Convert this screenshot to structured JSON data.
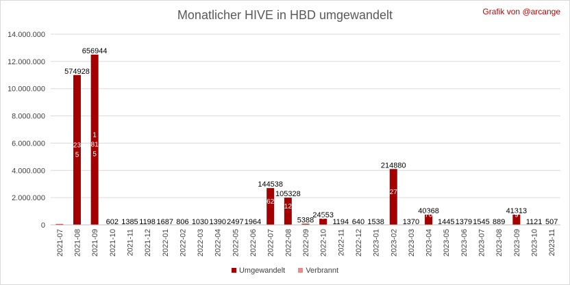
{
  "title": "Monatlicher HIVE in HBD umgewandelt",
  "credit": "Grafik von @arcange",
  "colors": {
    "converted": "#a50000",
    "converted_dark": "#7a0000",
    "burned": "#e8898a"
  },
  "chart_data": {
    "type": "bar",
    "stacked": true,
    "title": "Monatlicher HIVE in HBD umgewandelt",
    "ylim": [
      0,
      14000000
    ],
    "yticks": [
      0,
      2000000,
      4000000,
      6000000,
      8000000,
      10000000,
      12000000,
      14000000
    ],
    "ytick_labels": [
      "0",
      "2.000.000",
      "4.000.000",
      "6.000.000",
      "8.000.000",
      "10.000.000",
      "12.000.000",
      "14.000.000"
    ],
    "grid": true,
    "legend_position": "bottom",
    "categories": [
      "2021-07",
      "2021-08",
      "2021-09",
      "2021-10",
      "2021-11",
      "2021-12",
      "2022-01",
      "2022-02",
      "2022-03",
      "2022-04",
      "2022-05",
      "2022-06",
      "2022-07",
      "2022-08",
      "2022-09",
      "2022-10",
      "2022-11",
      "2022-12",
      "2023-01",
      "2023-02",
      "2023-03",
      "2023-04",
      "2023-05",
      "2023-06",
      "2023-07",
      "2023-08",
      "2023-09",
      "2023-10",
      "2023-11"
    ],
    "series": [
      {
        "name": "Umgewandelt",
        "values": [
          60000,
          11000000,
          12500000,
          0,
          0,
          0,
          0,
          0,
          0,
          0,
          0,
          0,
          2700000,
          2000000,
          80000,
          450000,
          0,
          0,
          0,
          4100000,
          0,
          750000,
          0,
          0,
          0,
          0,
          750000,
          0,
          0
        ]
      },
      {
        "name": "Verbrannt",
        "values": [
          0,
          0,
          0,
          0,
          0,
          0,
          0,
          0,
          0,
          0,
          0,
          0,
          0,
          0,
          0,
          0,
          0,
          0,
          0,
          0,
          0,
          0,
          0,
          0,
          0,
          0,
          0,
          0,
          0
        ]
      }
    ],
    "top_labels": [
      "",
      "574928",
      "656944",
      "602",
      "1385",
      "1198",
      "1687",
      "806",
      "1030",
      "1390",
      "2497",
      "1964",
      "144538",
      "105328",
      "5388",
      "24553",
      "1194",
      "640",
      "1538",
      "214880",
      "1370",
      "40368",
      "1445",
      "1379",
      "1545",
      "889",
      "41313",
      "1121",
      "507"
    ],
    "inner_labels": [
      {
        "index": 1,
        "text": "23"
      },
      {
        "index": 1,
        "text": "5"
      },
      {
        "index": 2,
        "text": "1"
      },
      {
        "index": 2,
        "text": "81"
      },
      {
        "index": 2,
        "text": "5"
      },
      {
        "index": 12,
        "text": "62"
      },
      {
        "index": 13,
        "text": "12"
      },
      {
        "index": 15,
        "text": "5"
      },
      {
        "index": 19,
        "text": "27"
      },
      {
        "index": 21,
        "text": "70"
      },
      {
        "index": 26,
        "text": "9"
      }
    ]
  }
}
